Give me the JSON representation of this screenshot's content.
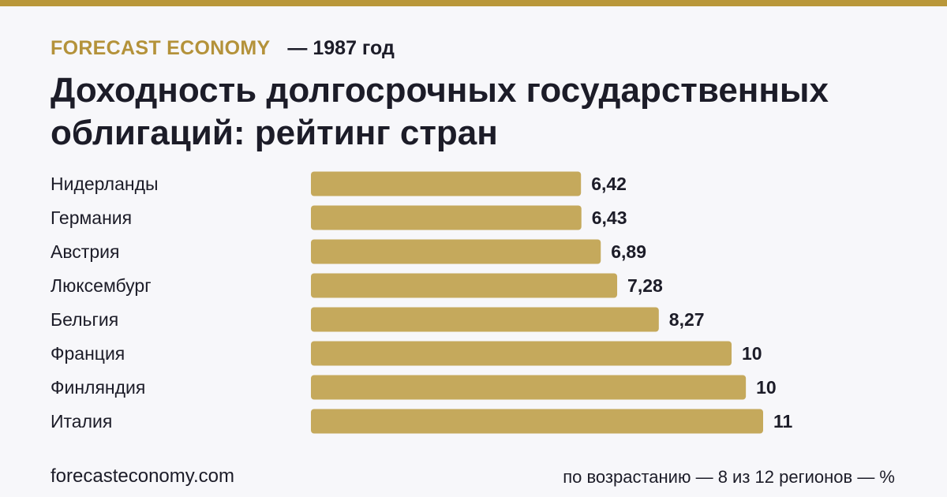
{
  "header": {
    "brand": "FORECAST ECONOMY",
    "year": "— 1987 год"
  },
  "title": "Доходность долгосрочных государственных облигаций: рейтинг стран",
  "footer": {
    "site": "forecasteconomy.com",
    "note": "по возрастанию — 8 из 12 регионов — %"
  },
  "colors": {
    "accent": "#b9973a",
    "bar": "#c5a95c",
    "text": "#1c1c28",
    "background": "#f7f7fa"
  },
  "chart_data": {
    "type": "bar",
    "orientation": "horizontal",
    "categories": [
      "Нидерланды",
      "Германия",
      "Австрия",
      "Люксембург",
      "Бельгия",
      "Франция",
      "Финляндия",
      "Италия"
    ],
    "values": [
      6.42,
      6.43,
      6.89,
      7.28,
      8.27,
      10.0,
      10.34,
      10.75
    ],
    "value_labels": [
      "6,42",
      "6,43",
      "6,89",
      "7,28",
      "8,27",
      "10",
      "10",
      "11"
    ],
    "xlim": [
      0,
      10.75
    ],
    "grid": false,
    "legend": "none"
  }
}
